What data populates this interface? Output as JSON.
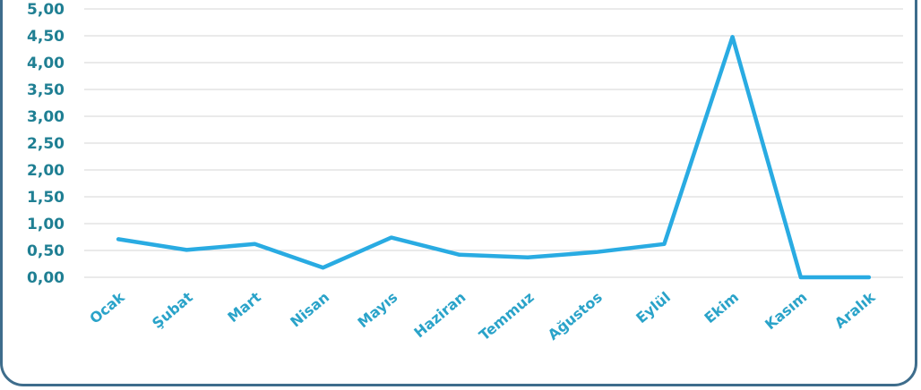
{
  "chart_data": {
    "type": "line",
    "title": "",
    "xlabel": "",
    "ylabel": "",
    "categories": [
      "Ocak",
      "Şubat",
      "Mart",
      "Nisan",
      "Mayıs",
      "Haziran",
      "Temmuz",
      "Ağustos",
      "Eylül",
      "Ekim",
      "Kasım",
      "Aralık"
    ],
    "series": [
      {
        "values": [
          0.71,
          0.51,
          0.62,
          0.18,
          0.74,
          0.42,
          0.37,
          0.47,
          0.62,
          4.48,
          0.0,
          0.0
        ]
      }
    ],
    "ylim": [
      0,
      5
    ],
    "yticks": [
      "0,00",
      "0,50",
      "1,00",
      "1,50",
      "2,00",
      "2,50",
      "3,00",
      "3,50",
      "4,00",
      "4,50",
      "5,00"
    ],
    "grid": true,
    "legend": "none",
    "colors": {
      "line": "#29abe2",
      "grid": "#d6d6d6",
      "y_tick_text": "#1f7f93",
      "x_tick_text": "#2aa3c9",
      "frame": "#3e6d8c"
    }
  }
}
